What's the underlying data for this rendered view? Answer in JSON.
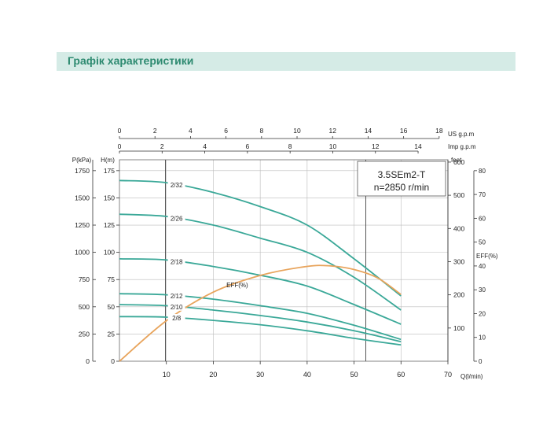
{
  "header": {
    "title": "Графік характеристики"
  },
  "chart_data": {
    "type": "line",
    "model_label": "3.5SEm2-T",
    "speed_label": "n=2850 r/min",
    "colors": {
      "curve": "#3aa898",
      "efficiency": "#e8a45c",
      "grid": "#999999",
      "axis": "#333333"
    },
    "axes": {
      "x_bottom": {
        "label": "Q(l/min)",
        "range": [
          0,
          70
        ],
        "ticks": [
          "10",
          "20",
          "30",
          "40",
          "50",
          "60",
          "70"
        ]
      },
      "x_us": {
        "label": "US  g.p.m",
        "range": [
          0,
          18
        ],
        "ticks": [
          "0",
          "2",
          "4",
          "6",
          "8",
          "10",
          "12",
          "14",
          "16",
          "18"
        ]
      },
      "x_imp": {
        "label": "Imp  g.p.m",
        "range": [
          0,
          14
        ],
        "ticks": [
          "0",
          "2",
          "4",
          "6",
          "8",
          "10",
          "12",
          "14"
        ]
      },
      "y_p": {
        "label": "P(kPa)",
        "range": [
          0,
          1750
        ],
        "ticks": [
          "0",
          "250",
          "500",
          "750",
          "1000",
          "1250",
          "1500",
          "1750"
        ]
      },
      "y_h": {
        "label": "H(m)",
        "range": [
          0,
          175
        ],
        "ticks": [
          "0",
          "25",
          "50",
          "75",
          "100",
          "125",
          "150",
          "175"
        ]
      },
      "y_feet": {
        "label": "feet",
        "range": [
          0,
          600
        ],
        "ticks": [
          "100",
          "200",
          "300",
          "400",
          "500",
          "600"
        ]
      },
      "y_eff": {
        "label": "EFF(%)",
        "range": [
          0,
          80
        ],
        "ticks": [
          "0",
          "10",
          "20",
          "30",
          "40",
          "50",
          "60",
          "70",
          "80"
        ]
      }
    },
    "series": [
      {
        "name": "2/32",
        "x": [
          0,
          10,
          20,
          30,
          40,
          50,
          60
        ],
        "y": [
          166,
          164,
          155,
          142,
          125,
          94,
          60
        ]
      },
      {
        "name": "2/26",
        "x": [
          0,
          10,
          20,
          30,
          40,
          50,
          60
        ],
        "y": [
          135,
          133,
          125,
          113,
          100,
          77,
          47
        ]
      },
      {
        "name": "2/18",
        "x": [
          0,
          10,
          20,
          30,
          40,
          50,
          60
        ],
        "y": [
          94,
          93,
          87,
          79,
          69,
          52,
          34
        ]
      },
      {
        "name": "2/12",
        "x": [
          0,
          10,
          20,
          30,
          40,
          50,
          60
        ],
        "y": [
          62,
          61,
          57,
          51,
          44,
          33,
          20
        ]
      },
      {
        "name": "2/10",
        "x": [
          0,
          10,
          20,
          30,
          40,
          50,
          60
        ],
        "y": [
          52,
          51,
          47,
          42,
          36,
          28,
          18
        ]
      },
      {
        "name": "2/8",
        "x": [
          0,
          10,
          20,
          30,
          40,
          50,
          60
        ],
        "y": [
          41,
          40.5,
          37.5,
          33.5,
          28,
          21,
          15
        ]
      }
    ],
    "efficiency": {
      "name": "EFF(%)",
      "x": [
        0,
        10,
        20,
        30,
        40,
        45,
        50,
        55,
        60
      ],
      "y": [
        0,
        17,
        29,
        36,
        39.8,
        40,
        38.5,
        35,
        28
      ]
    },
    "markers": {
      "q_lines": [
        9.8,
        52.5
      ]
    }
  }
}
